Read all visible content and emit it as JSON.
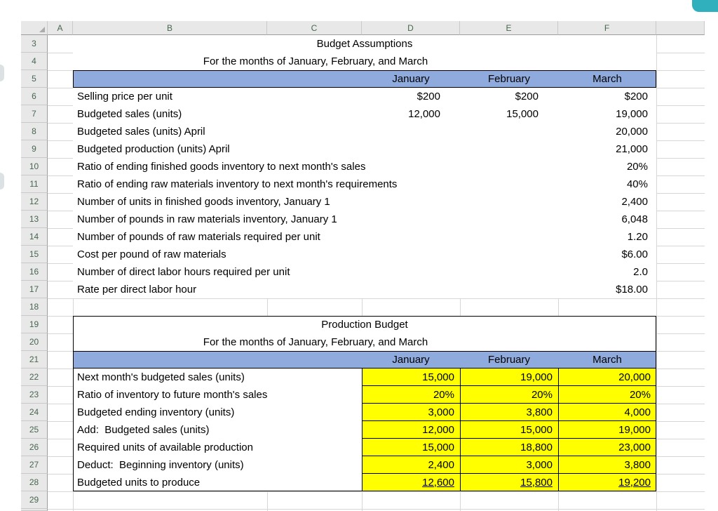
{
  "colors": {
    "band_fill": "#8FAADC",
    "highlight_fill": "#FFFF00",
    "accent_corner": "#2FB0BC"
  },
  "sheet": {
    "column_headers": [
      "A",
      "B",
      "C",
      "D",
      "E",
      "F"
    ],
    "row_numbers": [
      3,
      4,
      5,
      6,
      7,
      8,
      9,
      10,
      11,
      12,
      13,
      14,
      15,
      16,
      17,
      18,
      19,
      20,
      21,
      22,
      23,
      24,
      25,
      26,
      27,
      28,
      29
    ]
  },
  "tables": {
    "assumptions": {
      "title": "Budget Assumptions",
      "title_row": 3,
      "subtitle": "For the months of January, February, and March",
      "subtitle_row": 4,
      "header_row": 5,
      "months": [
        "January",
        "February",
        "March"
      ],
      "rows": [
        {
          "row": 6,
          "label": "Selling price per unit",
          "values": [
            "$200",
            "$200",
            "$200"
          ]
        },
        {
          "row": 7,
          "label": "Budgeted sales (units)",
          "values": [
            "12,000",
            "15,000",
            "19,000"
          ]
        },
        {
          "row": 8,
          "label": "Budgeted sales (units) April",
          "values": [
            "",
            "",
            "20,000"
          ]
        },
        {
          "row": 9,
          "label": "Budgeted production (units) April",
          "values": [
            "",
            "",
            "21,000"
          ]
        },
        {
          "row": 10,
          "label": "Ratio of ending finished goods inventory to next month's sales",
          "values": [
            "",
            "",
            "20%"
          ]
        },
        {
          "row": 11,
          "label": "Ratio of ending raw materials inventory to next month's requirements",
          "values": [
            "",
            "",
            "40%"
          ]
        },
        {
          "row": 12,
          "label": "Number of units in finished goods inventory, January 1",
          "values": [
            "",
            "",
            "2,400"
          ]
        },
        {
          "row": 13,
          "label": "Number of pounds in raw materials inventory, January 1",
          "values": [
            "",
            "",
            "6,048"
          ]
        },
        {
          "row": 14,
          "label": "Number of pounds of raw materials required per unit",
          "values": [
            "",
            "",
            "1.20"
          ]
        },
        {
          "row": 15,
          "label": "Cost per pound of raw materials",
          "values": [
            "",
            "",
            "$6.00"
          ]
        },
        {
          "row": 16,
          "label": "Number of direct labor hours required per unit",
          "values": [
            "",
            "",
            "2.0"
          ]
        },
        {
          "row": 17,
          "label": "Rate per direct labor hour",
          "values": [
            "",
            "",
            "$18.00"
          ]
        }
      ]
    },
    "production": {
      "title": "Production Budget",
      "title_row": 19,
      "subtitle": "For the months of January, February, and March",
      "subtitle_row": 20,
      "header_row": 21,
      "months": [
        "January",
        "February",
        "March"
      ],
      "rows": [
        {
          "row": 22,
          "label": "Next month's budgeted sales (units)",
          "values": [
            "15,000",
            "19,000",
            "20,000"
          ]
        },
        {
          "row": 23,
          "label": "Ratio of inventory to future month's sales",
          "values": [
            "20%",
            "20%",
            "20%"
          ]
        },
        {
          "row": 24,
          "label": "Budgeted ending inventory (units)",
          "values": [
            "3,000",
            "3,800",
            "4,000"
          ]
        },
        {
          "row": 25,
          "label": "Add:  Budgeted sales (units)",
          "values": [
            "12,000",
            "15,000",
            "19,000"
          ]
        },
        {
          "row": 26,
          "label": "Required units of available production",
          "values": [
            "15,000",
            "18,800",
            "23,000"
          ]
        },
        {
          "row": 27,
          "label": "Deduct:  Beginning inventory (units)",
          "values": [
            "2,400",
            "3,000",
            "3,800"
          ]
        },
        {
          "row": 28,
          "label": "Budgeted units to produce",
          "values": [
            "12,600",
            "15,800",
            "19,200"
          ],
          "underline": true
        }
      ]
    }
  }
}
